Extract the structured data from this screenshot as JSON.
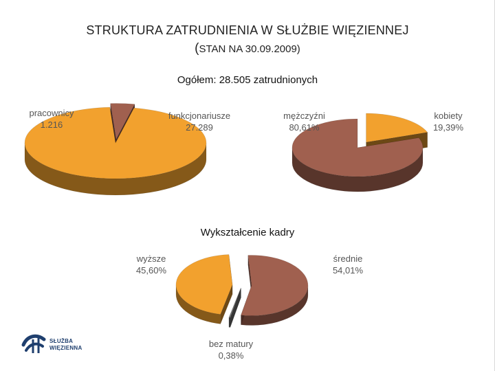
{
  "slide": {
    "title": "STRUKTURA ZATRUDNIENIA W SŁUŻBIE WIĘZIENNEJ",
    "subtitle_paren": "(",
    "subtitle": "STAN NA 30.09.2009)",
    "total": "Ogółem: 28.505 zatrudnionych"
  },
  "logo": {
    "line1": "SŁUŻBA",
    "line2": "WIĘZIENNA",
    "icon": "sw-logo-icon"
  },
  "colors": {
    "orange": "#f2a12e",
    "brown": "#a0604f",
    "gray": "#7a7a7a"
  },
  "chart_data": [
    {
      "type": "pie",
      "series": [
        {
          "values": [
            1216,
            27289
          ]
        }
      ],
      "labels": [
        "pracownicy\n1.216",
        "funkcjonariusze\n27.289"
      ],
      "categories": [
        "pracownicy",
        "funkcjonariusze"
      ],
      "label_lines": [
        [
          "pracownicy",
          "1.216"
        ],
        [
          "funkcjonariusze",
          "27.289"
        ]
      ]
    },
    {
      "type": "pie",
      "categories": [
        "mężczyźni",
        "kobiety"
      ],
      "values": [
        80.61,
        19.39
      ],
      "label_lines": [
        [
          "mężczyźni",
          "80,61%"
        ],
        [
          "kobiety",
          "19,39%"
        ]
      ]
    },
    {
      "type": "pie",
      "title": "Wykształcenie kadry",
      "categories": [
        "wyższe",
        "średnie",
        "bez matury"
      ],
      "values": [
        45.6,
        54.01,
        0.38
      ],
      "label_lines": [
        [
          "wyższe",
          "45,60%"
        ],
        [
          "średnie",
          "54,01%"
        ],
        [
          "bez matury",
          "0,38%"
        ]
      ]
    }
  ]
}
